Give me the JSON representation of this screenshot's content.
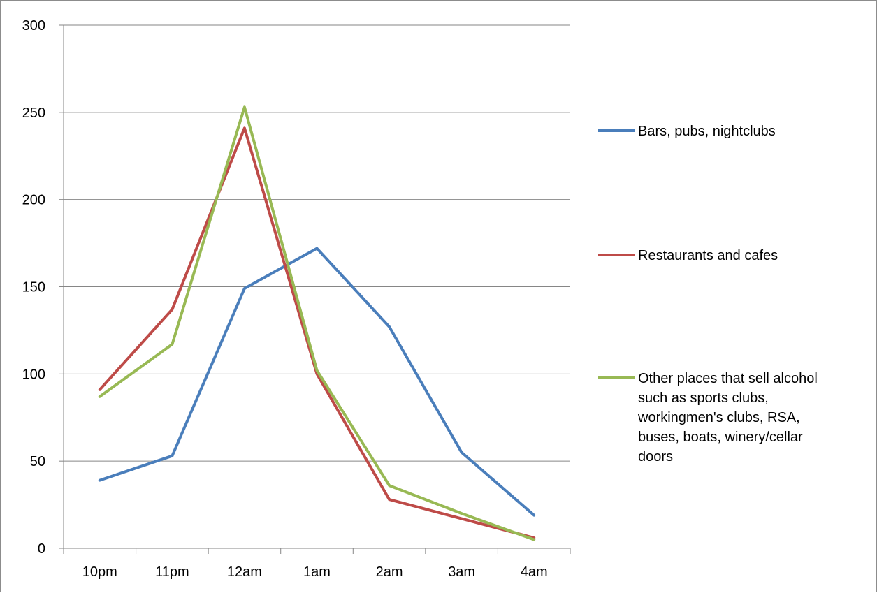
{
  "chart_data": {
    "type": "line",
    "title": "",
    "xlabel": "",
    "ylabel": "",
    "categories": [
      "10pm",
      "11pm",
      "12am",
      "1am",
      "2am",
      "3am",
      "4am"
    ],
    "ylim": [
      0,
      300
    ],
    "yticks": [
      "0",
      "50",
      "100",
      "150",
      "200",
      "250",
      "300"
    ],
    "grid": true,
    "legend_position": "right",
    "series": [
      {
        "name": "Bars, pubs, nightclubs",
        "color": "#4a7ebb",
        "values": [
          39,
          53,
          149,
          172,
          127,
          55,
          19
        ]
      },
      {
        "name": "Restaurants and cafes",
        "color": "#be4b48",
        "values": [
          91,
          137,
          241,
          100,
          28,
          17,
          6
        ]
      },
      {
        "name": "Other places that sell alcohol such as sports clubs, workingmen's clubs, RSA, buses, boats, winery/cellar doors",
        "legend_lines": [
          "Other places that sell alcohol",
          "such as sports clubs,",
          "workingmen's clubs, RSA,",
          "buses, boats, winery/cellar",
          "doors"
        ],
        "color": "#98b954",
        "values": [
          87,
          117,
          253,
          102,
          36,
          20,
          5
        ]
      }
    ]
  }
}
